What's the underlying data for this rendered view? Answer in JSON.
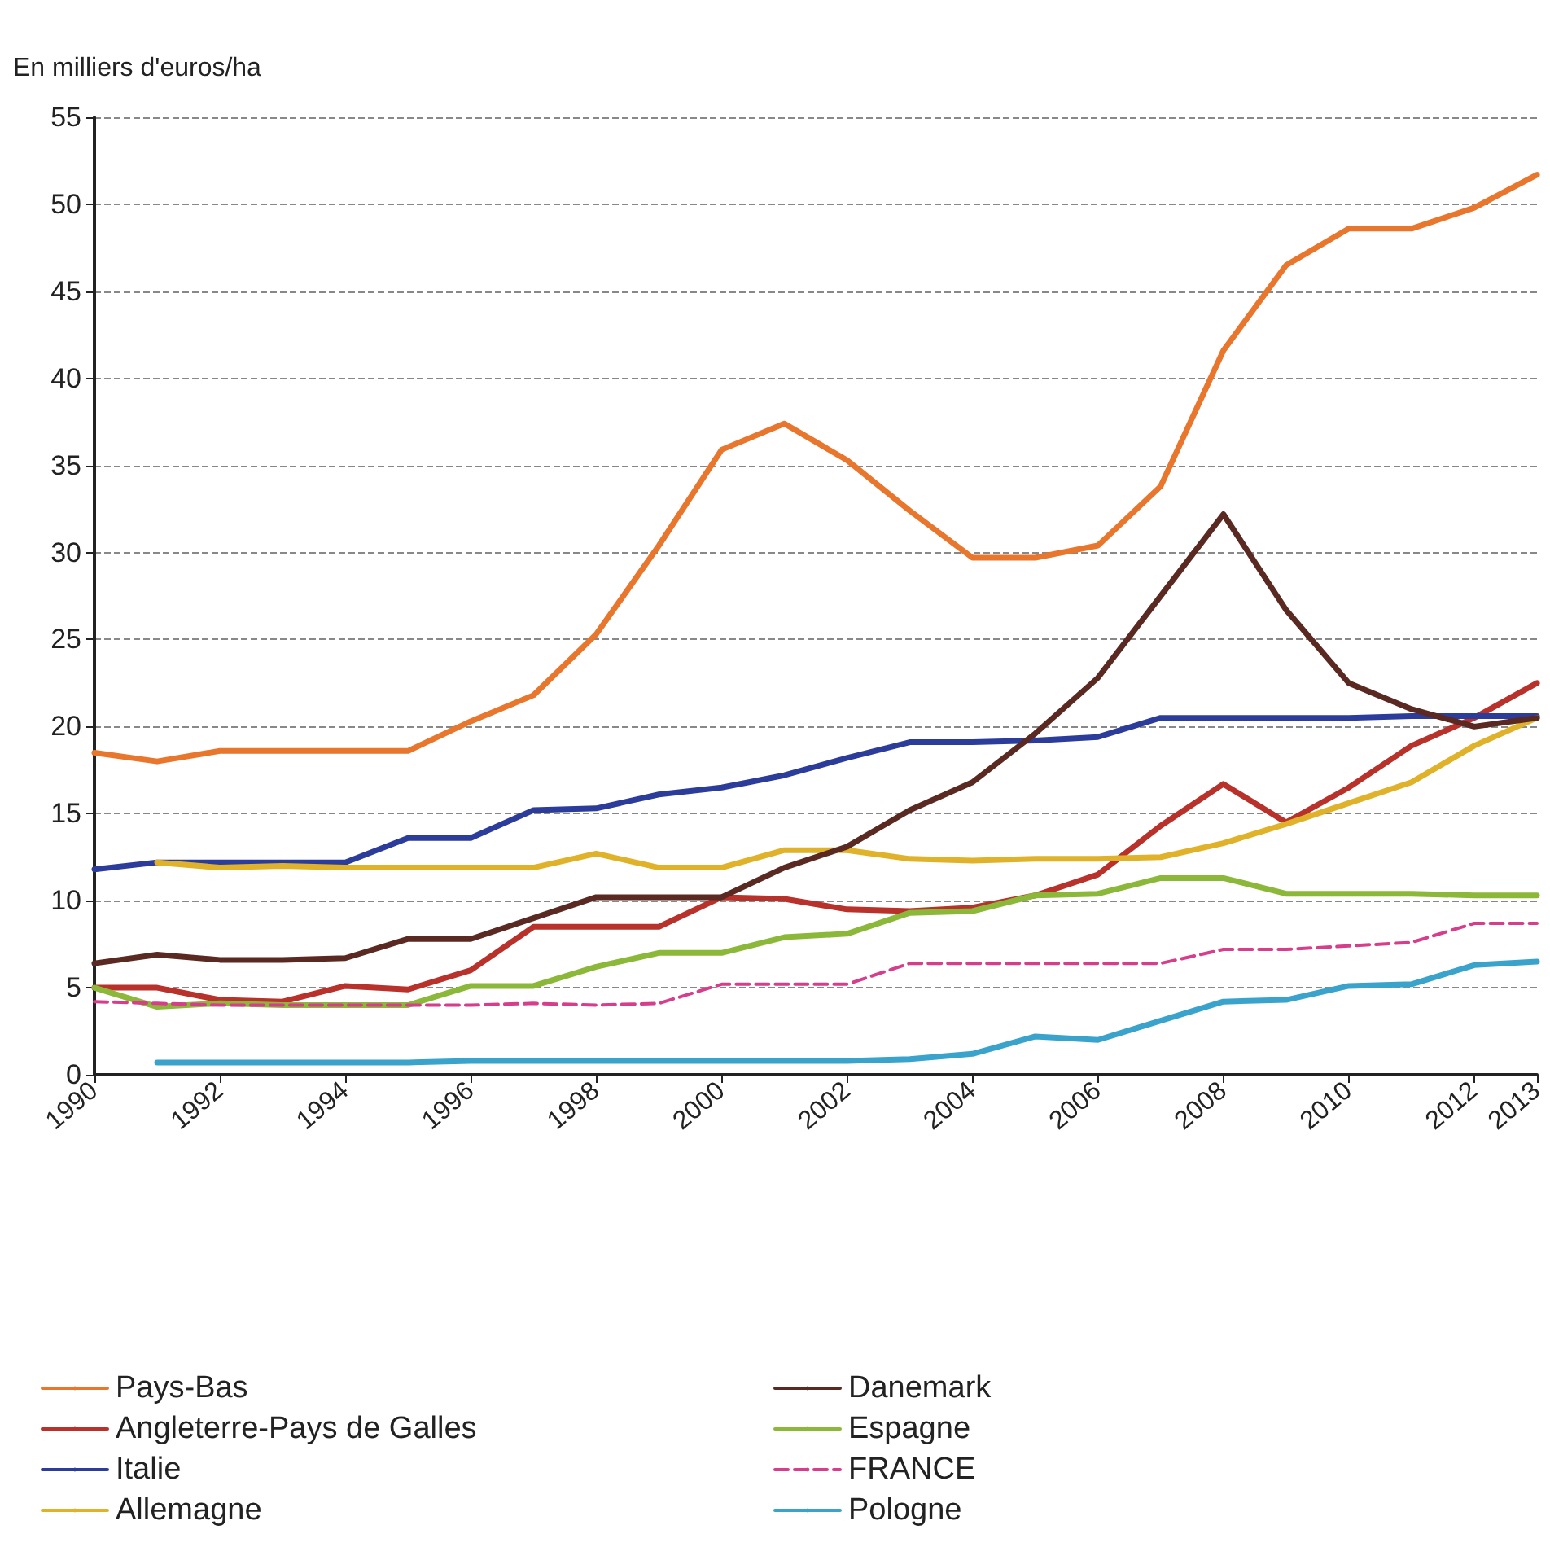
{
  "chart_data": {
    "type": "line",
    "ylabel": "En milliers d'euros/ha",
    "x": [
      1990,
      1991,
      1992,
      1993,
      1994,
      1995,
      1996,
      1997,
      1998,
      1999,
      2000,
      2001,
      2002,
      2003,
      2004,
      2005,
      2006,
      2007,
      2008,
      2009,
      2010,
      2011,
      2012,
      2013
    ],
    "xlim": [
      1990,
      2013
    ],
    "xticks": [
      1990,
      1992,
      1994,
      1996,
      1998,
      2000,
      2002,
      2004,
      2006,
      2008,
      2010,
      2012,
      2013
    ],
    "ylim": [
      0,
      55
    ],
    "yticks": [
      0,
      5,
      10,
      15,
      20,
      25,
      30,
      35,
      40,
      45,
      50,
      55
    ],
    "grid": "y",
    "legend": "bottom",
    "marker": "none",
    "series": [
      {
        "name": "Pays-Bas",
        "color": "#e8762d",
        "values": [
          18.5,
          18.0,
          18.6,
          18.6,
          18.6,
          18.6,
          20.3,
          21.8,
          25.3,
          30.4,
          35.9,
          37.4,
          35.3,
          32.4,
          29.7,
          29.7,
          30.4,
          33.8,
          41.6,
          46.5,
          48.6,
          48.6,
          49.8,
          51.7
        ]
      },
      {
        "name": "Angleterre-Pays de Galles",
        "color": "#b8312a",
        "values": [
          5.0,
          5.0,
          4.3,
          4.2,
          5.1,
          4.9,
          6.0,
          8.5,
          8.5,
          8.5,
          10.2,
          10.1,
          9.5,
          9.4,
          9.6,
          10.3,
          11.5,
          14.3,
          16.7,
          14.5,
          16.5,
          18.9,
          20.5,
          22.5
        ]
      },
      {
        "name": "Italie",
        "color": "#2b3c9a",
        "values": [
          11.8,
          12.2,
          12.2,
          12.2,
          12.2,
          13.6,
          13.6,
          15.2,
          15.3,
          16.1,
          16.5,
          17.2,
          18.2,
          19.1,
          19.1,
          19.2,
          19.4,
          20.5,
          20.5,
          20.5,
          20.5,
          20.6,
          20.6,
          20.6
        ]
      },
      {
        "name": "Allemagne",
        "color": "#e0b22a",
        "values": [
          null,
          12.2,
          11.9,
          12.0,
          11.9,
          11.9,
          11.9,
          11.9,
          12.7,
          11.9,
          11.9,
          12.9,
          12.9,
          12.4,
          12.3,
          12.4,
          12.4,
          12.5,
          13.3,
          14.4,
          15.6,
          16.8,
          18.9,
          20.5
        ]
      },
      {
        "name": "Danemark",
        "color": "#5a2a22",
        "values": [
          6.4,
          6.9,
          6.6,
          6.6,
          6.7,
          7.8,
          7.8,
          9.0,
          10.2,
          10.2,
          10.2,
          11.9,
          13.1,
          15.2,
          16.8,
          19.6,
          22.8,
          27.5,
          32.2,
          26.7,
          22.5,
          21.0,
          20.0,
          20.5
        ]
      },
      {
        "name": "Espagne",
        "color": "#8cb83a",
        "values": [
          5.0,
          3.9,
          4.1,
          4.0,
          4.0,
          4.0,
          5.1,
          5.1,
          6.2,
          7.0,
          7.0,
          7.9,
          8.1,
          9.3,
          9.4,
          10.3,
          10.4,
          11.3,
          11.3,
          10.4,
          10.4,
          10.4,
          10.3,
          10.3
        ]
      },
      {
        "name": "FRANCE",
        "color": "#d63d8a",
        "line_style": "dashed",
        "values": [
          4.2,
          4.1,
          4.0,
          4.0,
          4.0,
          4.0,
          4.0,
          4.1,
          4.0,
          4.1,
          5.2,
          5.2,
          5.2,
          6.4,
          6.4,
          6.4,
          6.4,
          6.4,
          7.2,
          7.2,
          7.4,
          7.6,
          8.7,
          8.7
        ]
      },
      {
        "name": "Pologne",
        "color": "#3aa3cc",
        "values": [
          null,
          0.7,
          0.7,
          0.7,
          0.7,
          0.7,
          0.8,
          0.8,
          0.8,
          0.8,
          0.8,
          0.8,
          0.8,
          0.9,
          1.2,
          2.2,
          2.0,
          3.1,
          4.2,
          4.3,
          5.1,
          5.2,
          6.3,
          6.5
        ]
      }
    ]
  }
}
